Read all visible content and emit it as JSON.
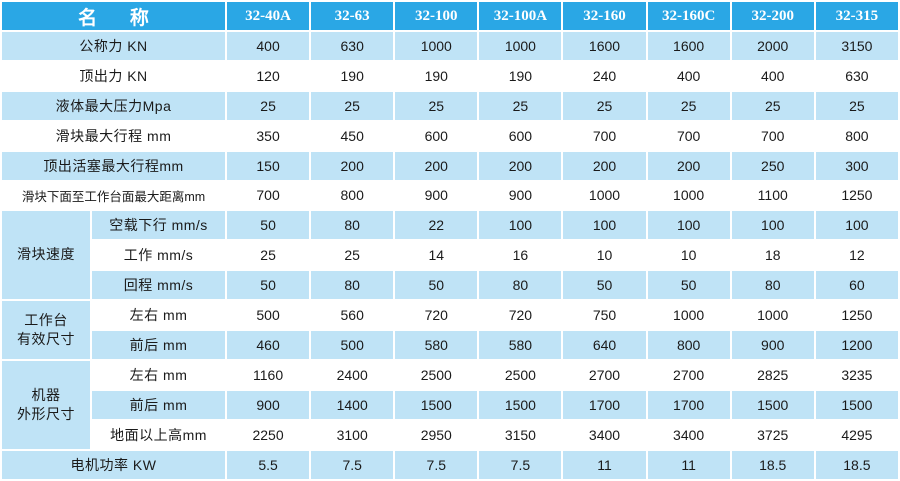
{
  "header": {
    "name_label": "名 称",
    "models": [
      "32-40A",
      "32-63",
      "32-100",
      "32-100A",
      "32-160",
      "32-160C",
      "32-200",
      "32-315"
    ]
  },
  "rows": {
    "nominal_force": {
      "label": "公称力 KN",
      "values": [
        "400",
        "630",
        "1000",
        "1000",
        "1600",
        "1600",
        "2000",
        "3150"
      ]
    },
    "ejection_force": {
      "label": "顶出力 KN",
      "values": [
        "120",
        "190",
        "190",
        "190",
        "240",
        "400",
        "400",
        "630"
      ]
    },
    "max_liquid_pressure": {
      "label": "液体最大压力Mpa",
      "values": [
        "25",
        "25",
        "25",
        "25",
        "25",
        "25",
        "25",
        "25"
      ]
    },
    "slider_max_stroke": {
      "label": "滑块最大行程 mm",
      "values": [
        "350",
        "450",
        "600",
        "600",
        "700",
        "700",
        "700",
        "800"
      ]
    },
    "ejector_max_stroke": {
      "label": "顶出活塞最大行程mm",
      "values": [
        "150",
        "200",
        "200",
        "200",
        "200",
        "200",
        "250",
        "300"
      ]
    },
    "slider_table_max_distance": {
      "label": "滑块下面至工作台面最大距离mm",
      "values": [
        "700",
        "800",
        "900",
        "900",
        "1000",
        "1000",
        "1100",
        "1250"
      ]
    },
    "slider_speed": {
      "group_label_line1": "滑块速度",
      "idle_descent": {
        "label": "空载下行 mm/s",
        "values": [
          "50",
          "80",
          "22",
          "100",
          "100",
          "100",
          "100",
          "100"
        ]
      },
      "working": {
        "label": "工作 mm/s",
        "values": [
          "25",
          "25",
          "14",
          "16",
          "10",
          "10",
          "18",
          "12"
        ]
      },
      "return": {
        "label": "回程 mm/s",
        "values": [
          "50",
          "80",
          "50",
          "80",
          "50",
          "50",
          "80",
          "60"
        ]
      }
    },
    "table_size": {
      "group_label_line1": "工作台",
      "group_label_line2": "有效尺寸",
      "left_right": {
        "label": "左右 mm",
        "values": [
          "500",
          "560",
          "720",
          "720",
          "750",
          "1000",
          "1000",
          "1250"
        ]
      },
      "front_back": {
        "label": "前后 mm",
        "values": [
          "460",
          "500",
          "580",
          "580",
          "640",
          "800",
          "900",
          "1200"
        ]
      }
    },
    "machine_size": {
      "group_label_line1": "机器",
      "group_label_line2": "外形尺寸",
      "left_right": {
        "label": "左右 mm",
        "values": [
          "1160",
          "2400",
          "2500",
          "2500",
          "2700",
          "2700",
          "2825",
          "3235"
        ]
      },
      "front_back": {
        "label": "前后 mm",
        "values": [
          "900",
          "1400",
          "1500",
          "1500",
          "1700",
          "1700",
          "1500",
          "1500"
        ]
      },
      "height": {
        "label": "地面以上高mm",
        "values": [
          "2250",
          "3100",
          "2950",
          "3150",
          "3400",
          "3400",
          "3725",
          "4295"
        ]
      }
    },
    "motor_power": {
      "label": "电机功率 KW",
      "values": [
        "5.5",
        "7.5",
        "7.5",
        "7.5",
        "11",
        "11",
        "18.5",
        "18.5"
      ]
    }
  },
  "colors": {
    "header_bg": "#2aa7e5",
    "stripe_bg": "#bfe3f6",
    "plain_bg": "#ffffff",
    "text": "#1a1a1a"
  }
}
